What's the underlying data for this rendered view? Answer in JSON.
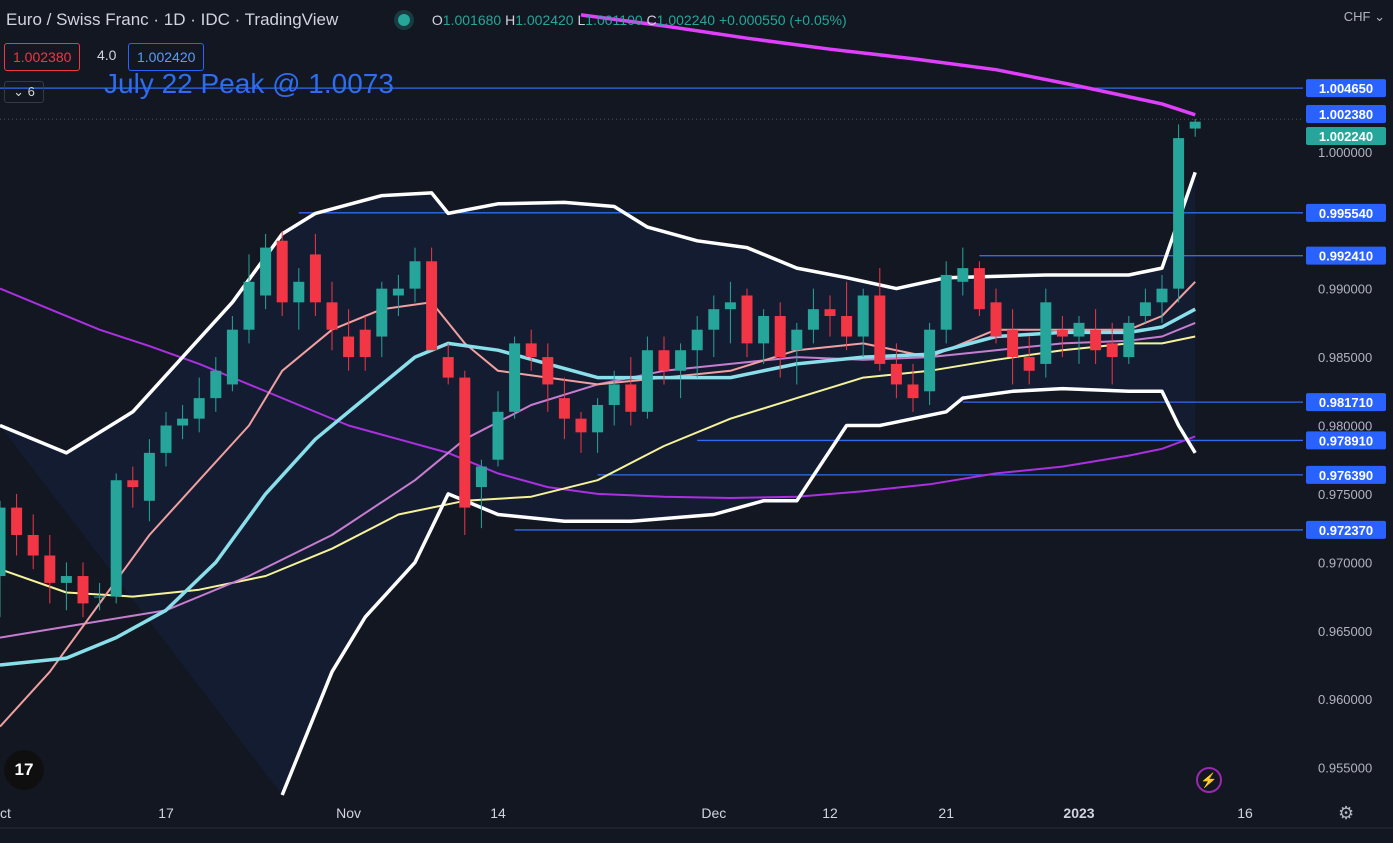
{
  "header": {
    "title": "Euro / Swiss Franc · 1D · IDC · TradingView",
    "ohlc": {
      "o_label": "O",
      "o": "1.001680",
      "h_label": "H",
      "h": "1.002420",
      "l_label": "L",
      "l": "1.001100",
      "c_label": "C",
      "c": "1.002240",
      "chg": "+0.000550 (+0.05%)"
    },
    "bid": "1.002380",
    "spread": "4.0",
    "ask": "1.002420",
    "collapse_label": "6",
    "currency": "CHF"
  },
  "annotation": "July 22 Peak @ 1.0073",
  "logo_text": "17",
  "colors": {
    "up": "#26a69a",
    "down": "#f23645",
    "level": "#2e6cf0",
    "bb": "#ffffff",
    "sma200": "#e040fb",
    "sma100": "#aa30e0"
  },
  "chart_data": {
    "type": "candlestick",
    "xlim": [
      0,
      1393
    ],
    "ylim": [
      0.953,
      1.0089
    ],
    "y_ticks": [
      0.955,
      0.96,
      0.965,
      0.97,
      0.975,
      0.98,
      0.985,
      0.99,
      1.0
    ],
    "y_tick_labels": [
      "0.955000",
      "0.960000",
      "0.965000",
      "0.970000",
      "0.975000",
      "0.980000",
      "0.985000",
      "0.990000",
      "1.000000"
    ],
    "x_ticks": [
      {
        "label": "Oct",
        "i": 0
      },
      {
        "label": "17",
        "i": 10
      },
      {
        "label": "Nov",
        "i": 21
      },
      {
        "label": "14",
        "i": 30
      },
      {
        "label": "Dec",
        "i": 43
      },
      {
        "label": "12",
        "i": 50
      },
      {
        "label": "21",
        "i": 57
      },
      {
        "label": "2023",
        "i": 65
      },
      {
        "label": "16",
        "i": 75
      }
    ],
    "levels": [
      {
        "value": 1.00465,
        "label": "1.004650",
        "start": 0
      },
      {
        "value": 0.99554,
        "label": "0.995540",
        "start": 18
      },
      {
        "value": 0.99241,
        "label": "0.992410",
        "start": 59
      },
      {
        "value": 0.98171,
        "label": "0.981710",
        "start": 58
      },
      {
        "value": 0.97891,
        "label": "0.978910",
        "start": 42
      },
      {
        "value": 0.97639,
        "label": "0.976390",
        "start": 36
      },
      {
        "value": 0.97237,
        "label": "0.972370",
        "start": 31
      }
    ],
    "price_tags": [
      {
        "value": 1.00238,
        "label": "1.002380",
        "color": "#2962ff"
      },
      {
        "value": 1.00224,
        "label": "1.002240",
        "color": "#26a69a"
      }
    ],
    "candles": [
      [
        0.969,
        0.9745,
        0.966,
        0.974
      ],
      [
        0.974,
        0.975,
        0.9705,
        0.972
      ],
      [
        0.972,
        0.9735,
        0.9695,
        0.9705
      ],
      [
        0.9705,
        0.972,
        0.967,
        0.9685
      ],
      [
        0.9685,
        0.97,
        0.9665,
        0.969
      ],
      [
        0.969,
        0.97,
        0.966,
        0.967
      ],
      [
        0.9675,
        0.9685,
        0.9665,
        0.9675
      ],
      [
        0.9675,
        0.9765,
        0.967,
        0.976
      ],
      [
        0.976,
        0.977,
        0.974,
        0.9755
      ],
      [
        0.9745,
        0.979,
        0.973,
        0.978
      ],
      [
        0.978,
        0.981,
        0.977,
        0.98
      ],
      [
        0.98,
        0.9815,
        0.979,
        0.9805
      ],
      [
        0.9805,
        0.9835,
        0.9795,
        0.982
      ],
      [
        0.982,
        0.985,
        0.981,
        0.984
      ],
      [
        0.983,
        0.988,
        0.9825,
        0.987
      ],
      [
        0.987,
        0.9925,
        0.986,
        0.9905
      ],
      [
        0.9895,
        0.994,
        0.9885,
        0.993
      ],
      [
        0.9935,
        0.9942,
        0.988,
        0.989
      ],
      [
        0.989,
        0.9915,
        0.987,
        0.9905
      ],
      [
        0.9925,
        0.994,
        0.988,
        0.989
      ],
      [
        0.989,
        0.9905,
        0.9855,
        0.987
      ],
      [
        0.9865,
        0.9885,
        0.984,
        0.985
      ],
      [
        0.987,
        0.988,
        0.984,
        0.985
      ],
      [
        0.9865,
        0.9905,
        0.985,
        0.99
      ],
      [
        0.9895,
        0.991,
        0.988,
        0.99
      ],
      [
        0.99,
        0.993,
        0.989,
        0.992
      ],
      [
        0.992,
        0.993,
        0.986,
        0.9855
      ],
      [
        0.985,
        0.986,
        0.983,
        0.9835
      ],
      [
        0.9835,
        0.984,
        0.972,
        0.974
      ],
      [
        0.9755,
        0.9775,
        0.9725,
        0.977
      ],
      [
        0.9775,
        0.9825,
        0.977,
        0.981
      ],
      [
        0.981,
        0.9865,
        0.9805,
        0.986
      ],
      [
        0.986,
        0.987,
        0.984,
        0.985
      ],
      [
        0.985,
        0.986,
        0.981,
        0.983
      ],
      [
        0.982,
        0.9835,
        0.979,
        0.9805
      ],
      [
        0.9805,
        0.981,
        0.978,
        0.9795
      ],
      [
        0.9795,
        0.982,
        0.978,
        0.9815
      ],
      [
        0.9815,
        0.984,
        0.98,
        0.983
      ],
      [
        0.983,
        0.985,
        0.98,
        0.981
      ],
      [
        0.981,
        0.9865,
        0.9805,
        0.9855
      ],
      [
        0.9855,
        0.9865,
        0.983,
        0.984
      ],
      [
        0.984,
        0.986,
        0.982,
        0.9855
      ],
      [
        0.9855,
        0.988,
        0.9835,
        0.987
      ],
      [
        0.987,
        0.9895,
        0.985,
        0.9885
      ],
      [
        0.9885,
        0.9905,
        0.986,
        0.989
      ],
      [
        0.9895,
        0.99,
        0.985,
        0.986
      ],
      [
        0.986,
        0.9885,
        0.9845,
        0.988
      ],
      [
        0.988,
        0.989,
        0.9835,
        0.985
      ],
      [
        0.9855,
        0.9875,
        0.983,
        0.987
      ],
      [
        0.987,
        0.99,
        0.986,
        0.9885
      ],
      [
        0.9885,
        0.9895,
        0.9865,
        0.988
      ],
      [
        0.988,
        0.9905,
        0.9855,
        0.9865
      ],
      [
        0.9865,
        0.99,
        0.985,
        0.9895
      ],
      [
        0.9895,
        0.9915,
        0.984,
        0.9845
      ],
      [
        0.9845,
        0.986,
        0.982,
        0.983
      ],
      [
        0.983,
        0.9845,
        0.981,
        0.982
      ],
      [
        0.9825,
        0.9875,
        0.9815,
        0.987
      ],
      [
        0.987,
        0.992,
        0.986,
        0.991
      ],
      [
        0.9905,
        0.993,
        0.9895,
        0.9915
      ],
      [
        0.9915,
        0.992,
        0.988,
        0.9885
      ],
      [
        0.989,
        0.99,
        0.986,
        0.9865
      ],
      [
        0.987,
        0.9885,
        0.983,
        0.985
      ],
      [
        0.985,
        0.9865,
        0.983,
        0.984
      ],
      [
        0.9845,
        0.99,
        0.9835,
        0.989
      ],
      [
        0.987,
        0.988,
        0.985,
        0.9865
      ],
      [
        0.9865,
        0.988,
        0.9845,
        0.9875
      ],
      [
        0.987,
        0.9885,
        0.9845,
        0.9855
      ],
      [
        0.986,
        0.9875,
        0.983,
        0.985
      ],
      [
        0.985,
        0.988,
        0.9845,
        0.9875
      ],
      [
        0.988,
        0.99,
        0.9875,
        0.989
      ],
      [
        0.989,
        0.991,
        0.9875,
        0.99
      ],
      [
        0.99,
        1.002,
        0.989,
        1.001
      ],
      [
        1.0017,
        1.0024,
        1.0011,
        1.0022
      ]
    ],
    "bb_upper": [
      [
        0,
        0.98
      ],
      [
        4,
        0.978
      ],
      [
        8,
        0.981
      ],
      [
        11,
        0.985
      ],
      [
        14,
        0.989
      ],
      [
        17,
        0.994
      ],
      [
        19,
        0.9955
      ],
      [
        23,
        0.9968
      ],
      [
        26,
        0.997
      ],
      [
        27,
        0.9955
      ],
      [
        30,
        0.9962
      ],
      [
        34,
        0.9963
      ],
      [
        37,
        0.996
      ],
      [
        39,
        0.9945
      ],
      [
        42,
        0.9935
      ],
      [
        45,
        0.993
      ],
      [
        48,
        0.9915
      ],
      [
        51,
        0.9908
      ],
      [
        54,
        0.99
      ],
      [
        57,
        0.9908
      ],
      [
        63,
        0.991
      ],
      [
        68,
        0.991
      ],
      [
        70,
        0.9915
      ],
      [
        72,
        0.9985
      ]
    ],
    "bb_lower": [
      [
        17,
        0.953
      ],
      [
        20,
        0.962
      ],
      [
        22,
        0.966
      ],
      [
        25,
        0.97
      ],
      [
        27,
        0.975
      ],
      [
        30,
        0.9735
      ],
      [
        34,
        0.973
      ],
      [
        38,
        0.973
      ],
      [
        43,
        0.9735
      ],
      [
        46,
        0.9745
      ],
      [
        48,
        0.9745
      ],
      [
        51,
        0.98
      ],
      [
        53,
        0.98
      ],
      [
        57,
        0.981
      ],
      [
        58,
        0.982
      ],
      [
        61,
        0.9825
      ],
      [
        64,
        0.9827
      ],
      [
        68,
        0.9825
      ],
      [
        70,
        0.9825
      ],
      [
        71,
        0.98
      ],
      [
        72,
        0.978
      ]
    ],
    "ema_cyan": [
      [
        0,
        0.9625
      ],
      [
        4,
        0.963
      ],
      [
        7,
        0.9645
      ],
      [
        10,
        0.9665
      ],
      [
        13,
        0.97
      ],
      [
        16,
        0.975
      ],
      [
        19,
        0.979
      ],
      [
        22,
        0.982
      ],
      [
        25,
        0.985
      ],
      [
        27,
        0.986
      ],
      [
        30,
        0.9855
      ],
      [
        33,
        0.9845
      ],
      [
        36,
        0.9835
      ],
      [
        40,
        0.9835
      ],
      [
        44,
        0.9835
      ],
      [
        48,
        0.9845
      ],
      [
        52,
        0.985
      ],
      [
        56,
        0.9852
      ],
      [
        60,
        0.9865
      ],
      [
        64,
        0.9868
      ],
      [
        68,
        0.9868
      ],
      [
        70,
        0.9872
      ],
      [
        72,
        0.9885
      ]
    ],
    "ema_pink": [
      [
        0,
        0.958
      ],
      [
        3,
        0.962
      ],
      [
        6,
        0.967
      ],
      [
        9,
        0.972
      ],
      [
        12,
        0.976
      ],
      [
        15,
        0.98
      ],
      [
        17,
        0.984
      ],
      [
        20,
        0.987
      ],
      [
        23,
        0.9885
      ],
      [
        26,
        0.989
      ],
      [
        28,
        0.986
      ],
      [
        30,
        0.984
      ],
      [
        33,
        0.9835
      ],
      [
        36,
        0.983
      ],
      [
        40,
        0.9835
      ],
      [
        44,
        0.984
      ],
      [
        48,
        0.9855
      ],
      [
        52,
        0.986
      ],
      [
        56,
        0.985
      ],
      [
        60,
        0.987
      ],
      [
        64,
        0.987
      ],
      [
        68,
        0.987
      ],
      [
        70,
        0.988
      ],
      [
        72,
        0.9905
      ]
    ],
    "ema_purple": [
      [
        0,
        0.9645
      ],
      [
        5,
        0.9655
      ],
      [
        10,
        0.9665
      ],
      [
        15,
        0.969
      ],
      [
        20,
        0.972
      ],
      [
        25,
        0.976
      ],
      [
        28,
        0.979
      ],
      [
        32,
        0.9815
      ],
      [
        36,
        0.983
      ],
      [
        40,
        0.984
      ],
      [
        44,
        0.9845
      ],
      [
        48,
        0.985
      ],
      [
        52,
        0.9848
      ],
      [
        56,
        0.985
      ],
      [
        60,
        0.9855
      ],
      [
        64,
        0.986
      ],
      [
        68,
        0.9862
      ],
      [
        70,
        0.9865
      ],
      [
        72,
        0.9875
      ]
    ],
    "sma_yellow": [
      [
        0,
        0.9695
      ],
      [
        4,
        0.9678
      ],
      [
        8,
        0.9675
      ],
      [
        12,
        0.968
      ],
      [
        16,
        0.969
      ],
      [
        20,
        0.971
      ],
      [
        24,
        0.9735
      ],
      [
        28,
        0.9745
      ],
      [
        32,
        0.9748
      ],
      [
        36,
        0.976
      ],
      [
        40,
        0.9785
      ],
      [
        44,
        0.9805
      ],
      [
        48,
        0.982
      ],
      [
        52,
        0.9835
      ],
      [
        56,
        0.984
      ],
      [
        60,
        0.9848
      ],
      [
        64,
        0.9855
      ],
      [
        68,
        0.986
      ],
      [
        70,
        0.986
      ],
      [
        72,
        0.9865
      ]
    ],
    "sma100_purple": [
      [
        0,
        0.99
      ],
      [
        3,
        0.9885
      ],
      [
        6,
        0.987
      ],
      [
        9,
        0.9858
      ],
      [
        12,
        0.9845
      ],
      [
        15,
        0.983
      ],
      [
        18,
        0.9815
      ],
      [
        21,
        0.98
      ],
      [
        24,
        0.979
      ],
      [
        27,
        0.978
      ],
      [
        30,
        0.9765
      ],
      [
        33,
        0.9755
      ],
      [
        36,
        0.975
      ],
      [
        40,
        0.9748
      ],
      [
        44,
        0.9747
      ],
      [
        48,
        0.9748
      ],
      [
        52,
        0.9752
      ],
      [
        56,
        0.9757
      ],
      [
        60,
        0.9765
      ],
      [
        64,
        0.977
      ],
      [
        68,
        0.9778
      ],
      [
        70,
        0.9783
      ],
      [
        72,
        0.9792
      ]
    ],
    "sma200_magenta": [
      [
        35,
        1.01
      ],
      [
        40,
        1.0092
      ],
      [
        45,
        1.0083
      ],
      [
        50,
        1.0075
      ],
      [
        55,
        1.0068
      ],
      [
        60,
        1.006
      ],
      [
        65,
        1.0048
      ],
      [
        70,
        1.0035
      ],
      [
        72,
        1.0027
      ]
    ]
  }
}
